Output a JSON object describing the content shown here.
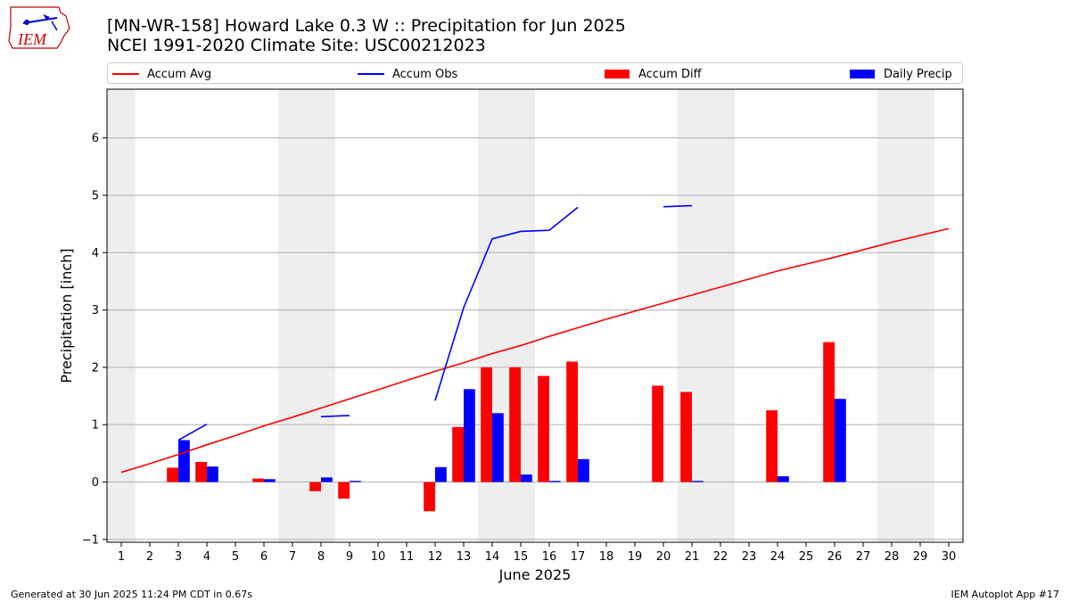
{
  "header": {
    "title_line1": "[MN-WR-158] Howard Lake 0.3 W :: Precipitation for Jun 2025",
    "title_line2": "NCEI 1991-2020 Climate Site: USC00212023",
    "logo_text": "IEM"
  },
  "footer": {
    "left": "Generated at 30 Jun 2025 11:24 PM CDT in 0.67s",
    "right": "IEM Autoplot App #17"
  },
  "legend": {
    "accum_avg": "Accum Avg",
    "accum_obs": "Accum Obs",
    "accum_diff": "Accum Diff",
    "daily_precip": "Daily Precip"
  },
  "colors": {
    "accum_avg": "#ff0000",
    "accum_obs": "#0000ff",
    "accum_diff": "#ff0000",
    "daily_precip": "#0000ff",
    "weekend_shade": "#eeeeee",
    "grid": "#b0b0b0"
  },
  "chart_data": {
    "type": "bar",
    "xlabel": "June 2025",
    "ylabel": "Precipitation [inch]",
    "xlim": [
      0.5,
      30.5
    ],
    "ylim": [
      -1.05,
      6.85
    ],
    "x_ticks": [
      1,
      2,
      3,
      4,
      5,
      6,
      7,
      8,
      9,
      10,
      11,
      12,
      13,
      14,
      15,
      16,
      17,
      18,
      19,
      20,
      21,
      22,
      23,
      24,
      25,
      26,
      27,
      28,
      29,
      30
    ],
    "y_ticks": [
      -1,
      0,
      1,
      2,
      3,
      4,
      5,
      6
    ],
    "y_tick_labels": [
      "−1",
      "0",
      "1",
      "2",
      "3",
      "4",
      "5",
      "6"
    ],
    "grid": "horizontal",
    "legend_position": "top",
    "weekend_shaded_days": [
      1,
      7,
      8,
      14,
      15,
      21,
      22,
      28,
      29
    ],
    "series": [
      {
        "name": "Accum Avg",
        "kind": "line",
        "x": [
          1,
          2,
          3,
          4,
          5,
          6,
          7,
          8,
          9,
          10,
          11,
          12,
          13,
          14,
          15,
          16,
          17,
          18,
          19,
          20,
          21,
          22,
          23,
          24,
          25,
          26,
          27,
          28,
          29,
          30
        ],
        "values": [
          0.17,
          0.32,
          0.48,
          0.65,
          0.81,
          0.98,
          1.13,
          1.29,
          1.45,
          1.61,
          1.77,
          1.93,
          2.08,
          2.24,
          2.38,
          2.54,
          2.69,
          2.84,
          2.98,
          3.12,
          3.26,
          3.4,
          3.54,
          3.68,
          3.8,
          3.92,
          4.05,
          4.18,
          4.3,
          4.42
        ]
      },
      {
        "name": "Accum Obs",
        "kind": "line",
        "segments": [
          {
            "x": [
              3,
              4
            ],
            "values": [
              0.73,
              1.01
            ]
          },
          {
            "x": [
              8,
              9
            ],
            "values": [
              1.14,
              1.16
            ]
          },
          {
            "x": [
              12,
              13,
              14,
              15,
              16,
              17
            ],
            "values": [
              1.42,
              3.04,
              4.24,
              4.37,
              4.39,
              4.79
            ]
          },
          {
            "x": [
              20,
              21
            ],
            "values": [
              4.8,
              4.82
            ]
          }
        ]
      },
      {
        "name": "Accum Diff",
        "kind": "bar",
        "x": [
          3,
          4,
          6,
          8,
          9,
          12,
          13,
          14,
          15,
          16,
          17,
          20,
          21,
          24,
          26
        ],
        "values": [
          0.25,
          0.35,
          0.06,
          -0.16,
          -0.29,
          -0.51,
          0.96,
          2.0,
          2.0,
          1.85,
          2.1,
          1.68,
          1.57,
          1.25,
          2.44
        ]
      },
      {
        "name": "Daily Precip",
        "kind": "bar",
        "x": [
          3,
          4,
          6,
          8,
          9,
          12,
          13,
          14,
          15,
          16,
          17,
          21,
          24,
          26
        ],
        "values": [
          0.73,
          0.27,
          0.05,
          0.08,
          0.02,
          0.26,
          1.62,
          1.2,
          0.13,
          0.02,
          0.4,
          0.02,
          0.1,
          1.45
        ]
      }
    ]
  }
}
